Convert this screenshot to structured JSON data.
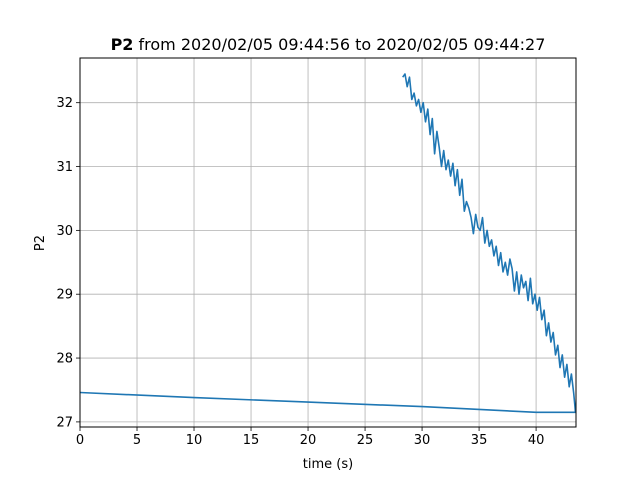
{
  "chart_data": {
    "type": "line",
    "title": {
      "bold": "P2",
      "rest": " from 2020/02/05 09:44:56 to 2020/02/05 09:44:27"
    },
    "xlabel": "time (s)",
    "ylabel": "P2",
    "xlim": [
      0,
      43.5
    ],
    "ylim": [
      26.92,
      32.7
    ],
    "xticks": [
      0,
      5,
      10,
      15,
      20,
      25,
      30,
      35,
      40
    ],
    "yticks": [
      27,
      28,
      29,
      30,
      31,
      32
    ],
    "grid": true,
    "series": [
      {
        "color": "#1f77b4",
        "x": [
          28.3,
          28.5,
          28.7,
          28.9,
          29.1,
          29.3,
          29.5,
          29.7,
          29.9,
          30.1,
          30.3,
          30.5,
          30.7,
          30.9,
          31.1,
          31.3,
          31.5,
          31.7,
          31.9,
          32.1,
          32.3,
          32.5,
          32.7,
          32.9,
          33.1,
          33.3,
          33.5,
          33.7,
          33.9,
          34.1,
          34.3,
          34.5,
          34.7,
          34.9,
          35.1,
          35.3,
          35.5,
          35.7,
          35.9,
          36.1,
          36.3,
          36.5,
          36.7,
          36.9,
          37.1,
          37.3,
          37.5,
          37.7,
          37.9,
          38.1,
          38.3,
          38.5,
          38.7,
          38.9,
          39.1,
          39.3,
          39.5,
          39.7,
          39.9,
          40.1,
          40.3,
          40.5,
          40.7,
          40.9,
          41.1,
          41.3,
          41.5,
          41.7,
          41.9,
          42.1,
          42.3,
          42.5,
          42.7,
          42.9,
          43.1,
          43.3,
          43.4,
          43.45,
          40.0,
          30.0,
          20.0,
          10.0,
          0.0
        ],
        "y": [
          32.4,
          32.45,
          32.25,
          32.4,
          32.05,
          32.15,
          31.95,
          32.05,
          31.85,
          32.0,
          31.7,
          31.9,
          31.5,
          31.75,
          31.2,
          31.55,
          31.3,
          31.0,
          31.25,
          30.95,
          31.1,
          30.85,
          31.05,
          30.7,
          30.95,
          30.55,
          30.8,
          30.3,
          30.45,
          30.35,
          30.2,
          29.95,
          30.25,
          30.05,
          30.0,
          30.2,
          29.8,
          30.0,
          29.75,
          29.85,
          29.6,
          29.75,
          29.45,
          29.65,
          29.35,
          29.5,
          29.3,
          29.55,
          29.4,
          29.05,
          29.35,
          29.0,
          29.3,
          29.1,
          29.2,
          28.9,
          29.25,
          28.85,
          29.0,
          28.75,
          28.95,
          28.6,
          28.75,
          28.35,
          28.55,
          28.25,
          28.4,
          28.05,
          28.2,
          27.85,
          28.05,
          27.7,
          27.9,
          27.55,
          27.75,
          27.45,
          27.25,
          27.15,
          27.15,
          27.24,
          27.31,
          27.38,
          27.46
        ]
      }
    ]
  }
}
